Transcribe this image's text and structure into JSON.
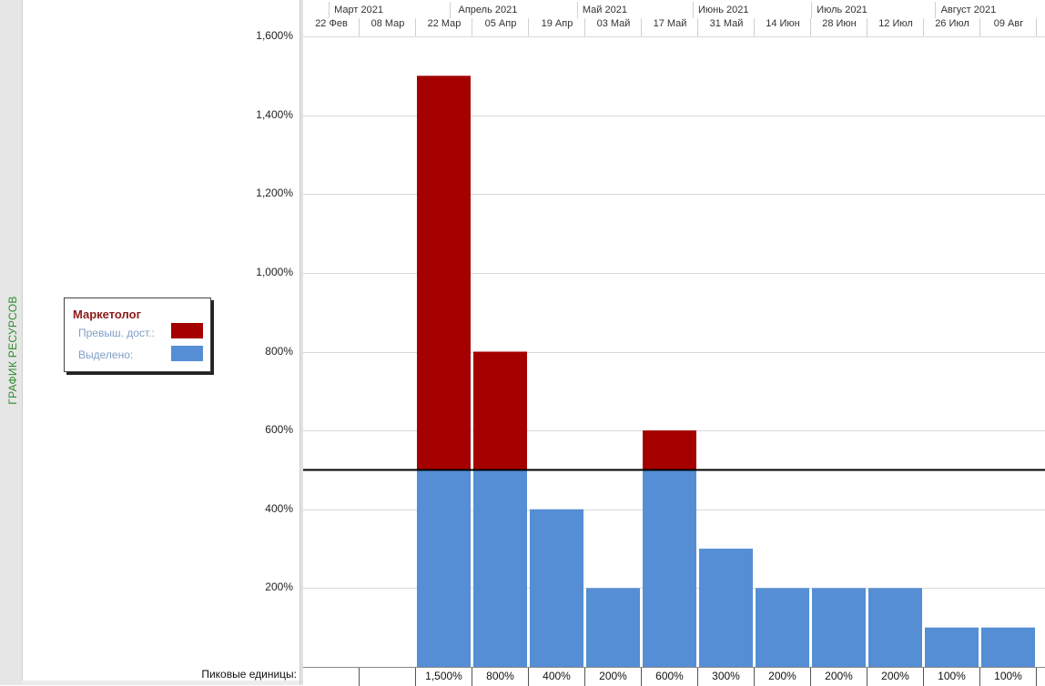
{
  "side_panel": {
    "label": "ГРАФИК РЕСУРСОВ"
  },
  "legend": {
    "title": "Маркетолог",
    "overallocated_label": "Превыш. дост.:",
    "allocated_label": "Выделено:",
    "overallocated_color": "#a50000",
    "allocated_color": "#558ed5"
  },
  "timescale": {
    "major": [
      "Март 2021",
      "Апрель 2021",
      "Май 2021",
      "Июнь 2021",
      "Июль 2021",
      "Август 2021"
    ],
    "minor": [
      "22 Фев",
      "08 Мар",
      "22 Мар",
      "05 Апр",
      "19 Апр",
      "03 Май",
      "17 Май",
      "31 Май",
      "14 Июн",
      "28 Июн",
      "12 Июл",
      "26 Июл",
      "09 Авг"
    ]
  },
  "peak_units": {
    "label": "Пиковые единицы:",
    "values": [
      "",
      "",
      "1,500%",
      "800%",
      "400%",
      "200%",
      "600%",
      "300%",
      "200%",
      "200%",
      "200%",
      "100%",
      "100%"
    ]
  },
  "chart_data": {
    "type": "bar",
    "stacked": true,
    "categories": [
      "22 Фев",
      "08 Мар",
      "22 Мар",
      "05 Апр",
      "19 Апр",
      "03 Май",
      "17 Май",
      "31 Май",
      "14 Июн",
      "28 Июн",
      "12 Июл",
      "26 Июл",
      "09 Авг"
    ],
    "series": [
      {
        "name": "Выделено:",
        "color": "#558ed5",
        "values": [
          0,
          0,
          500,
          500,
          400,
          200,
          500,
          300,
          200,
          200,
          200,
          100,
          100
        ]
      },
      {
        "name": "Превыш. дост.:",
        "color": "#a50000",
        "values": [
          0,
          0,
          1000,
          300,
          0,
          0,
          100,
          0,
          0,
          0,
          0,
          0,
          0
        ]
      }
    ],
    "max_units": 500,
    "ylim": [
      0,
      1600
    ],
    "yticks": [
      "200%",
      "400%",
      "600%",
      "800%",
      "1,000%",
      "1,200%",
      "1,400%",
      "1,600%"
    ],
    "grid": true
  }
}
